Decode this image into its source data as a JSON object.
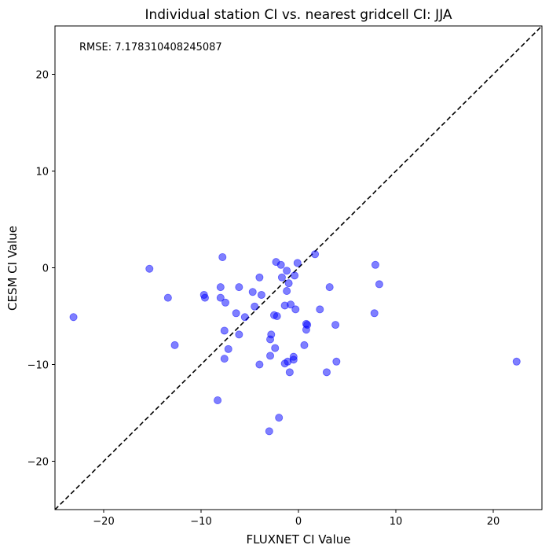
{
  "chart_data": {
    "type": "scatter",
    "title": "Individual station CI vs. nearest gridcell CI: JJA",
    "xlabel": "FLUXNET CI Value",
    "ylabel": "CESM CI Value",
    "xlim": [
      -25,
      25
    ],
    "ylim": [
      -25,
      25
    ],
    "xticks": [
      -20,
      -10,
      0,
      10,
      20
    ],
    "yticks": [
      -20,
      -10,
      0,
      10,
      20
    ],
    "xtick_labels": [
      "−20",
      "−10",
      "0",
      "10",
      "20"
    ],
    "ytick_labels": [
      "−20",
      "−10",
      "0",
      "10",
      "20"
    ],
    "grid": false,
    "annotation": "RMSE: 7.178310408245087",
    "reference_line": {
      "type": "y=x",
      "style": "dashed",
      "color": "#000000"
    },
    "marker_color": "#0000ff",
    "marker_alpha": 0.5,
    "points": [
      [
        -23.1,
        -5.1
      ],
      [
        -15.3,
        -0.1
      ],
      [
        -7.8,
        1.1
      ],
      [
        -13.4,
        -3.1
      ],
      [
        -9.7,
        -2.8
      ],
      [
        -9.6,
        -3.1
      ],
      [
        -8.0,
        -2.0
      ],
      [
        -8.0,
        -3.1
      ],
      [
        -7.5,
        -3.6
      ],
      [
        -6.1,
        -2.0
      ],
      [
        -4.0,
        -1.0
      ],
      [
        -4.7,
        -2.5
      ],
      [
        -3.8,
        -2.8
      ],
      [
        -4.5,
        -4.0
      ],
      [
        -6.4,
        -4.7
      ],
      [
        -5.5,
        -5.1
      ],
      [
        -7.6,
        -6.5
      ],
      [
        -6.1,
        -6.9
      ],
      [
        -12.7,
        -8.0
      ],
      [
        -7.2,
        -8.4
      ],
      [
        -7.6,
        -9.4
      ],
      [
        -8.3,
        -13.7
      ],
      [
        -4.0,
        -10.0
      ],
      [
        -2.3,
        0.6
      ],
      [
        -1.8,
        0.3
      ],
      [
        -0.1,
        0.5
      ],
      [
        1.7,
        1.4
      ],
      [
        -1.2,
        -0.3
      ],
      [
        -0.4,
        -0.8
      ],
      [
        -1.7,
        -1.0
      ],
      [
        -1.0,
        -1.6
      ],
      [
        -1.2,
        -2.4
      ],
      [
        -1.4,
        -3.9
      ],
      [
        -0.8,
        -3.8
      ],
      [
        -0.3,
        -4.3
      ],
      [
        -2.5,
        -4.9
      ],
      [
        -2.2,
        -5.0
      ],
      [
        2.2,
        -4.3
      ],
      [
        3.2,
        -2.0
      ],
      [
        0.8,
        -5.8
      ],
      [
        0.9,
        -5.9
      ],
      [
        0.8,
        -6.4
      ],
      [
        3.8,
        -5.9
      ],
      [
        -2.8,
        -6.9
      ],
      [
        -2.9,
        -7.4
      ],
      [
        -2.4,
        -8.3
      ],
      [
        0.6,
        -8.0
      ],
      [
        -2.9,
        -9.1
      ],
      [
        -1.4,
        -9.9
      ],
      [
        -1.1,
        -9.7
      ],
      [
        -0.5,
        -9.2
      ],
      [
        -0.5,
        -9.5
      ],
      [
        -0.9,
        -10.8
      ],
      [
        2.9,
        -10.8
      ],
      [
        3.9,
        -9.7
      ],
      [
        -2.0,
        -15.5
      ],
      [
        -3.0,
        -16.9
      ],
      [
        7.9,
        0.3
      ],
      [
        8.3,
        -1.7
      ],
      [
        7.8,
        -4.7
      ],
      [
        22.4,
        -9.7
      ]
    ]
  }
}
